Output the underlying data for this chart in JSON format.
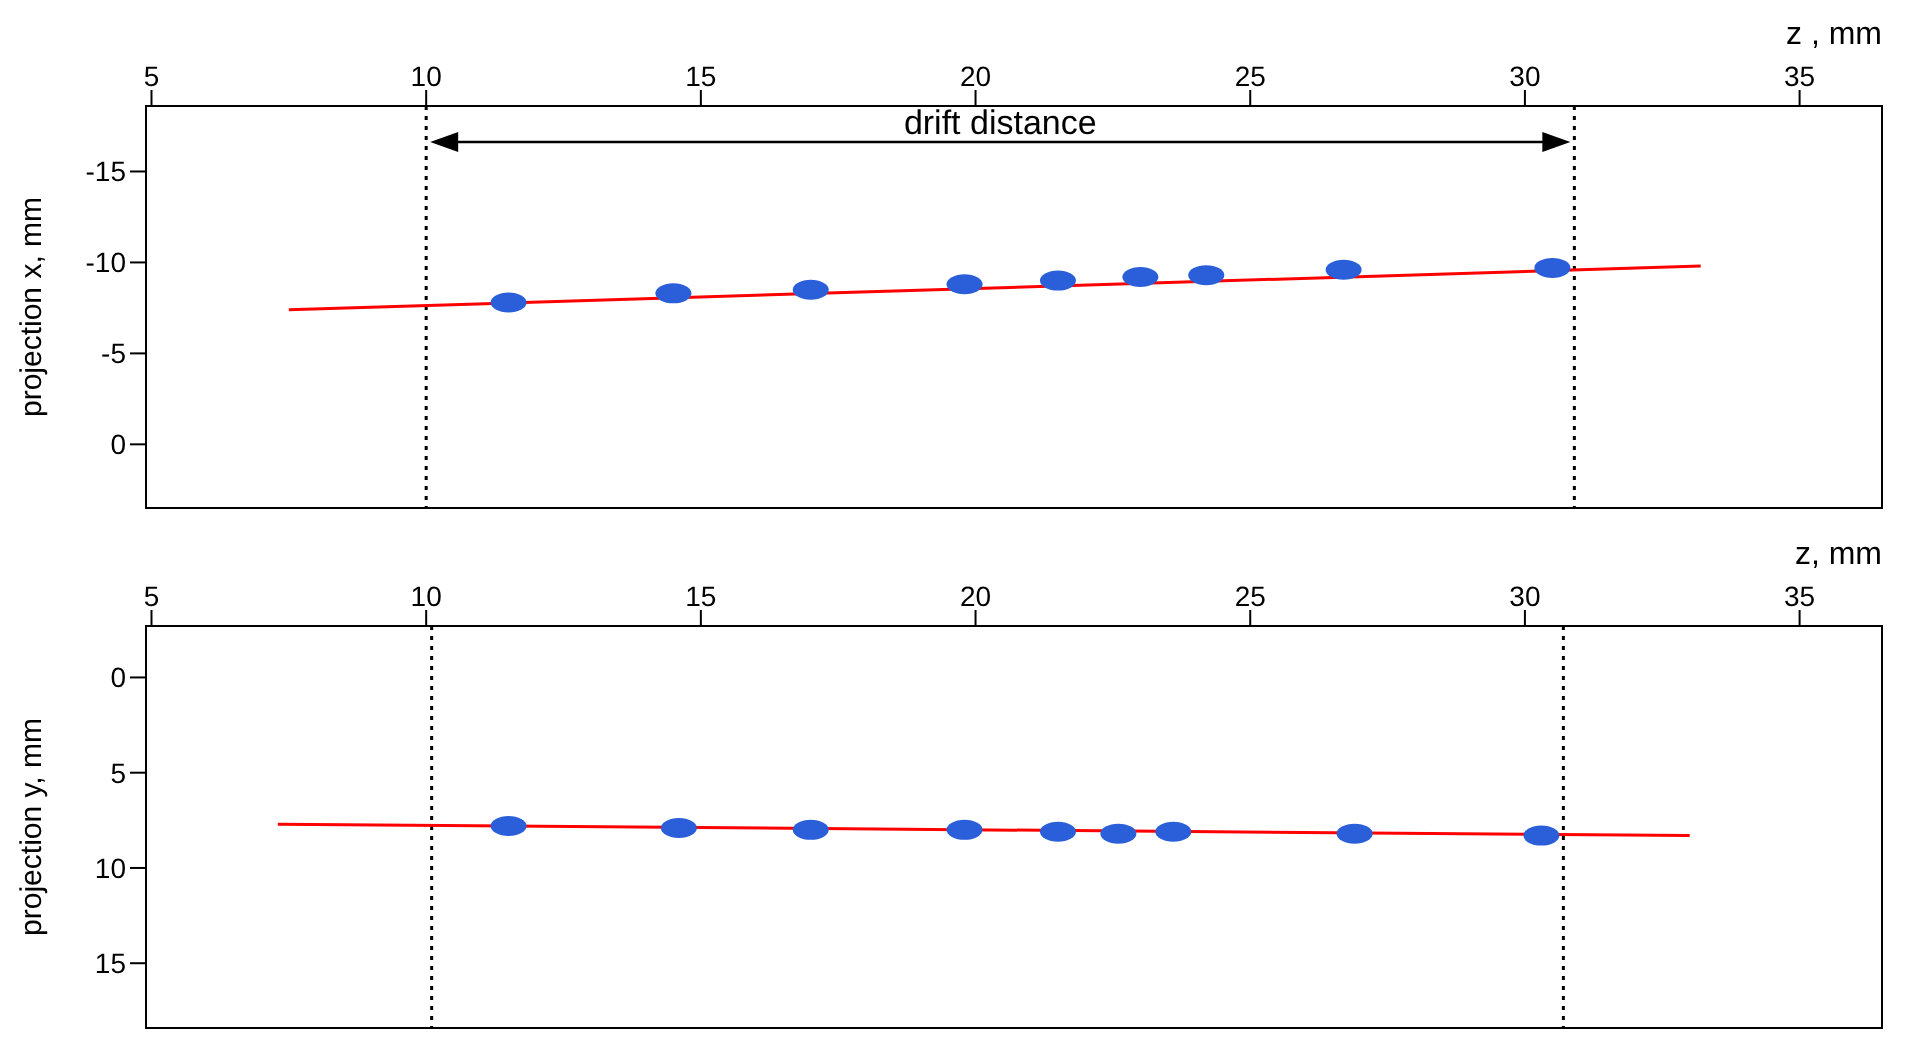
{
  "chart_data": [
    {
      "type": "scatter",
      "xlabel": "z , mm",
      "ylabel": "projection x, mm",
      "xlim": [
        4.9,
        36.5
      ],
      "xticks": [
        5,
        10,
        15,
        20,
        25,
        30,
        35
      ],
      "ylim": [
        3.5,
        -18.6
      ],
      "yticks": [
        -15,
        -10,
        -5,
        0
      ],
      "series": [
        {
          "color": "#2b5fd9",
          "x": [
            11.5,
            14.5,
            17,
            19.8,
            21.5,
            23,
            24.2,
            26.7,
            30.5
          ],
          "values": [
            -7.8,
            -8.3,
            -8.5,
            -8.8,
            -9.0,
            -9.2,
            -9.3,
            -9.6,
            -9.7
          ]
        },
        {
          "type": "line",
          "color": "#ff0000",
          "x": [
            7.5,
            33.2
          ],
          "values": [
            -7.4,
            -9.8
          ]
        }
      ],
      "ref_lines": [
        {
          "axis": "x",
          "value": 10,
          "line_style": "dotted",
          "color": "#000000"
        },
        {
          "axis": "x",
          "value": 30.9,
          "line_style": "dotted",
          "color": "#000000"
        }
      ],
      "annotations": [
        "drift distance"
      ]
    },
    {
      "type": "scatter",
      "xlabel": "z, mm",
      "ylabel": "projection y, mm",
      "xlim": [
        4.9,
        36.5
      ],
      "xticks": [
        5,
        10,
        15,
        20,
        25,
        30,
        35
      ],
      "ylim": [
        18.4,
        -2.7
      ],
      "yticks": [
        0,
        5,
        10,
        15
      ],
      "series": [
        {
          "color": "#2b5fd9",
          "x": [
            11.5,
            14.6,
            17,
            19.8,
            21.5,
            22.6,
            23.6,
            26.9,
            30.3
          ],
          "values": [
            7.8,
            7.9,
            8.0,
            8.0,
            8.1,
            8.2,
            8.1,
            8.2,
            8.3
          ]
        },
        {
          "type": "line",
          "color": "#ff0000",
          "x": [
            7.3,
            33
          ],
          "values": [
            7.7,
            8.3
          ]
        }
      ],
      "ref_lines": [
        {
          "axis": "x",
          "value": 10.1,
          "line_style": "dotted",
          "color": "#000000"
        },
        {
          "axis": "x",
          "value": 30.7,
          "line_style": "dotted",
          "color": "#000000"
        }
      ]
    }
  ]
}
